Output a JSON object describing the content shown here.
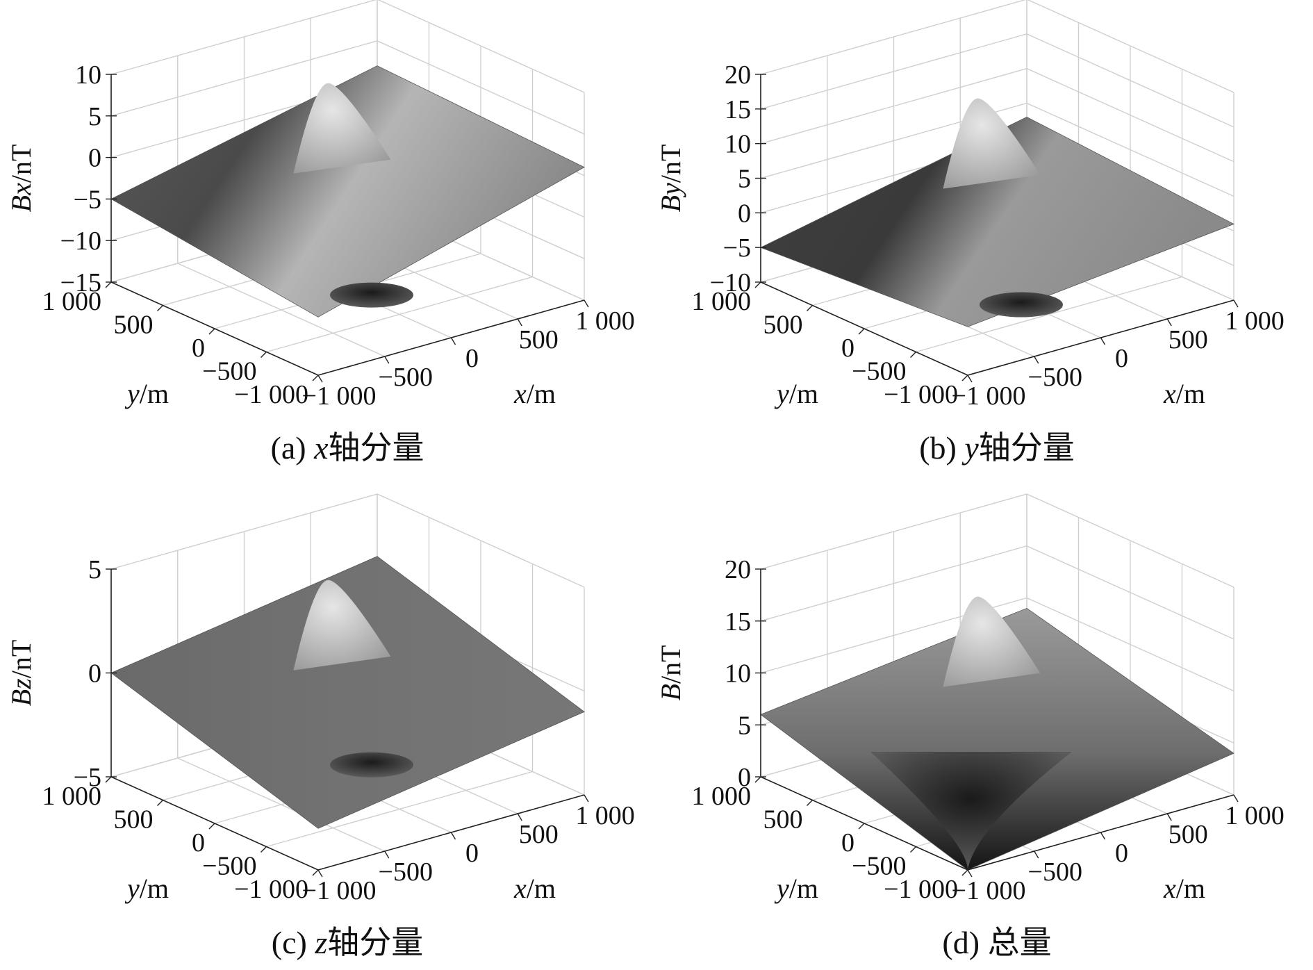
{
  "figure": {
    "panels": [
      {
        "caption": "(a) x轴分量",
        "caption_prefix": "(a)",
        "caption_var": "x",
        "caption_suffix": "轴分量",
        "zlabel_var": "Bx",
        "zlabel_unit": "/nT"
      },
      {
        "caption": "(b) y轴分量",
        "caption_prefix": "(b)",
        "caption_var": "y",
        "caption_suffix": "轴分量",
        "zlabel_var": "By",
        "zlabel_unit": "/nT"
      },
      {
        "caption": "(c) z轴分量",
        "caption_prefix": "(c)",
        "caption_var": "z",
        "caption_suffix": "轴分量",
        "zlabel_var": "Bz",
        "zlabel_unit": "/nT"
      },
      {
        "caption": "(d) 总量",
        "caption_prefix": "(d)",
        "caption_var": "",
        "caption_suffix": "总量",
        "zlabel_var": "B",
        "zlabel_unit": "/nT"
      }
    ],
    "x_axis_label": {
      "var": "x",
      "unit": "/m"
    },
    "y_axis_label": {
      "var": "y",
      "unit": "/m"
    },
    "xy_tick_labels": [
      "−1 000",
      "−500",
      "0",
      "500",
      "1 000"
    ]
  },
  "chart_data": [
    {
      "type": "surface3d",
      "title": "(a) x轴分量",
      "xlabel": "x/m",
      "ylabel": "y/m",
      "zlabel": "Bx/nT",
      "xlim": [
        -1000,
        1000
      ],
      "ylim": [
        -1000,
        1000
      ],
      "zlim": [
        -15,
        10
      ],
      "xticks": [
        -1000,
        -500,
        0,
        500,
        1000
      ],
      "yticks": [
        -1000,
        -500,
        0,
        500,
        1000
      ],
      "zticks": [
        -15,
        -10,
        -5,
        0,
        5,
        10
      ],
      "zticklabels": [
        "−15",
        "−10",
        "−5",
        "0",
        "5",
        "10"
      ],
      "grid": true,
      "colormap": "gray",
      "peak": 8.5,
      "trough": -13
    },
    {
      "type": "surface3d",
      "title": "(b) y轴分量",
      "xlabel": "x/m",
      "ylabel": "y/m",
      "zlabel": "By/nT",
      "xlim": [
        -1000,
        1000
      ],
      "ylim": [
        -1000,
        1000
      ],
      "zlim": [
        -10,
        20
      ],
      "xticks": [
        -1000,
        -500,
        0,
        500,
        1000
      ],
      "yticks": [
        -1000,
        -500,
        0,
        500,
        1000
      ],
      "zticks": [
        -10,
        -5,
        0,
        5,
        10,
        15,
        20
      ],
      "zticklabels": [
        "−10",
        "−5",
        "0",
        "5",
        "10",
        "15",
        "20"
      ],
      "grid": true,
      "colormap": "gray",
      "peak": 16,
      "trough": -9
    },
    {
      "type": "surface3d",
      "title": "(c) z轴分量",
      "xlabel": "x/m",
      "ylabel": "y/m",
      "zlabel": "Bz/nT",
      "xlim": [
        -1000,
        1000
      ],
      "ylim": [
        -1000,
        1000
      ],
      "zlim": [
        -5,
        5
      ],
      "xticks": [
        -1000,
        -500,
        0,
        500,
        1000
      ],
      "yticks": [
        -1000,
        -500,
        0,
        500,
        1000
      ],
      "zticks": [
        -5,
        0,
        5
      ],
      "zticklabels": [
        "−5",
        "0",
        "5"
      ],
      "grid": true,
      "colormap": "gray",
      "peak": 4.3,
      "trough": -3
    },
    {
      "type": "surface3d",
      "title": "(d) 总量",
      "xlabel": "x/m",
      "ylabel": "y/m",
      "zlabel": "B/nT",
      "xlim": [
        -1000,
        1000
      ],
      "ylim": [
        -1000,
        1000
      ],
      "zlim": [
        0,
        20
      ],
      "xticks": [
        -1000,
        -500,
        0,
        500,
        1000
      ],
      "yticks": [
        -1000,
        -500,
        0,
        500,
        1000
      ],
      "zticks": [
        0,
        5,
        10,
        15,
        20
      ],
      "zticklabels": [
        "0",
        "5",
        "10",
        "15",
        "20"
      ],
      "grid": true,
      "colormap": "gray",
      "peak": 17,
      "trough": 0
    }
  ]
}
